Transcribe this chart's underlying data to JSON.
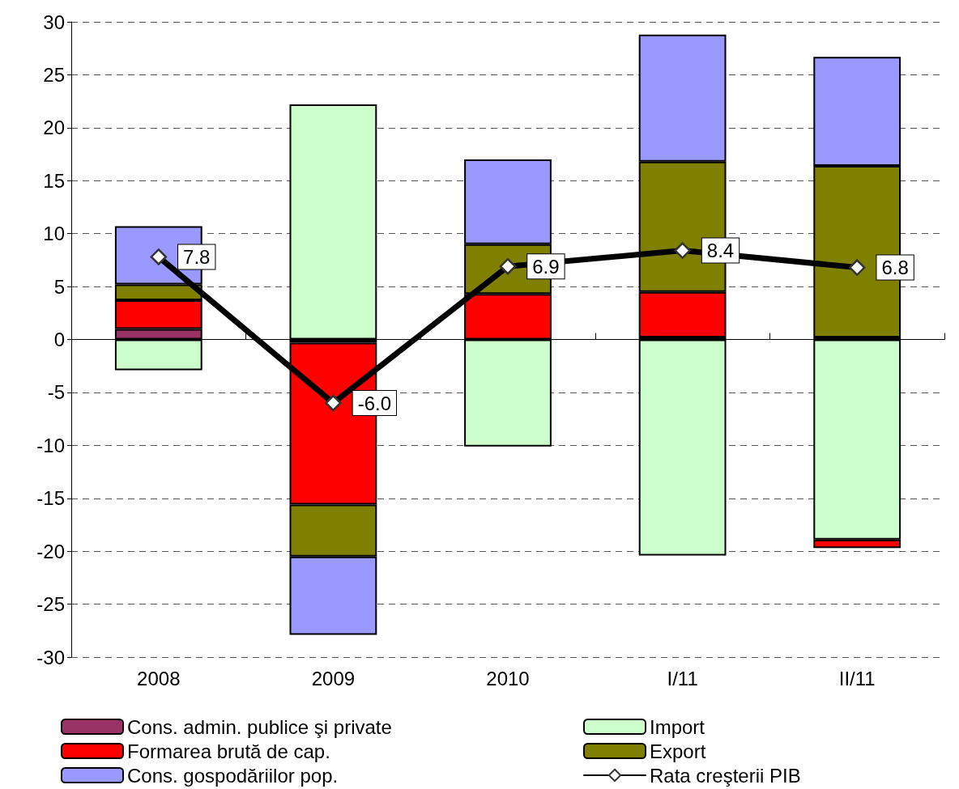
{
  "chart_data": {
    "type": "bar",
    "stacked": true,
    "categories": [
      "2008",
      "2009",
      "2010",
      "I/11",
      "II/11"
    ],
    "series": [
      {
        "name": "Cons. admin. publice şi private",
        "color": "#993366",
        "values": [
          1.0,
          -0.3,
          null,
          0.2,
          0.2
        ]
      },
      {
        "name": "Import",
        "color": "#ccffcc",
        "values": [
          -2.9,
          22.2,
          -10.1,
          -20.4,
          -18.9
        ]
      },
      {
        "name": "Formarea brută de cap.",
        "color": "#ff0000",
        "values": [
          2.7,
          -15.3,
          4.3,
          4.3,
          -0.8
        ]
      },
      {
        "name": "Export",
        "color": "#808000",
        "values": [
          1.5,
          -4.9,
          4.7,
          12.3,
          16.2
        ]
      },
      {
        "name": "Cons. gospodăriilor pop.",
        "color": "#9999ff",
        "values": [
          5.5,
          -7.4,
          8.0,
          12.0,
          10.3
        ]
      },
      {
        "name": "Rata creşterii PIB",
        "type": "line",
        "color": "#000000",
        "values": [
          7.8,
          -6.0,
          6.9,
          8.4,
          6.8
        ],
        "value_labels": [
          "7.8",
          "-6.0",
          "6.9",
          "8.4",
          "6.8"
        ]
      }
    ],
    "ylim": [
      -30,
      30
    ],
    "yticks": [
      -30,
      -25,
      -20,
      -15,
      -10,
      -5,
      0,
      5,
      10,
      15,
      20,
      25,
      30
    ],
    "grid": "y",
    "legend": "bottom",
    "marker": "diamond",
    "line_style": "solid"
  }
}
